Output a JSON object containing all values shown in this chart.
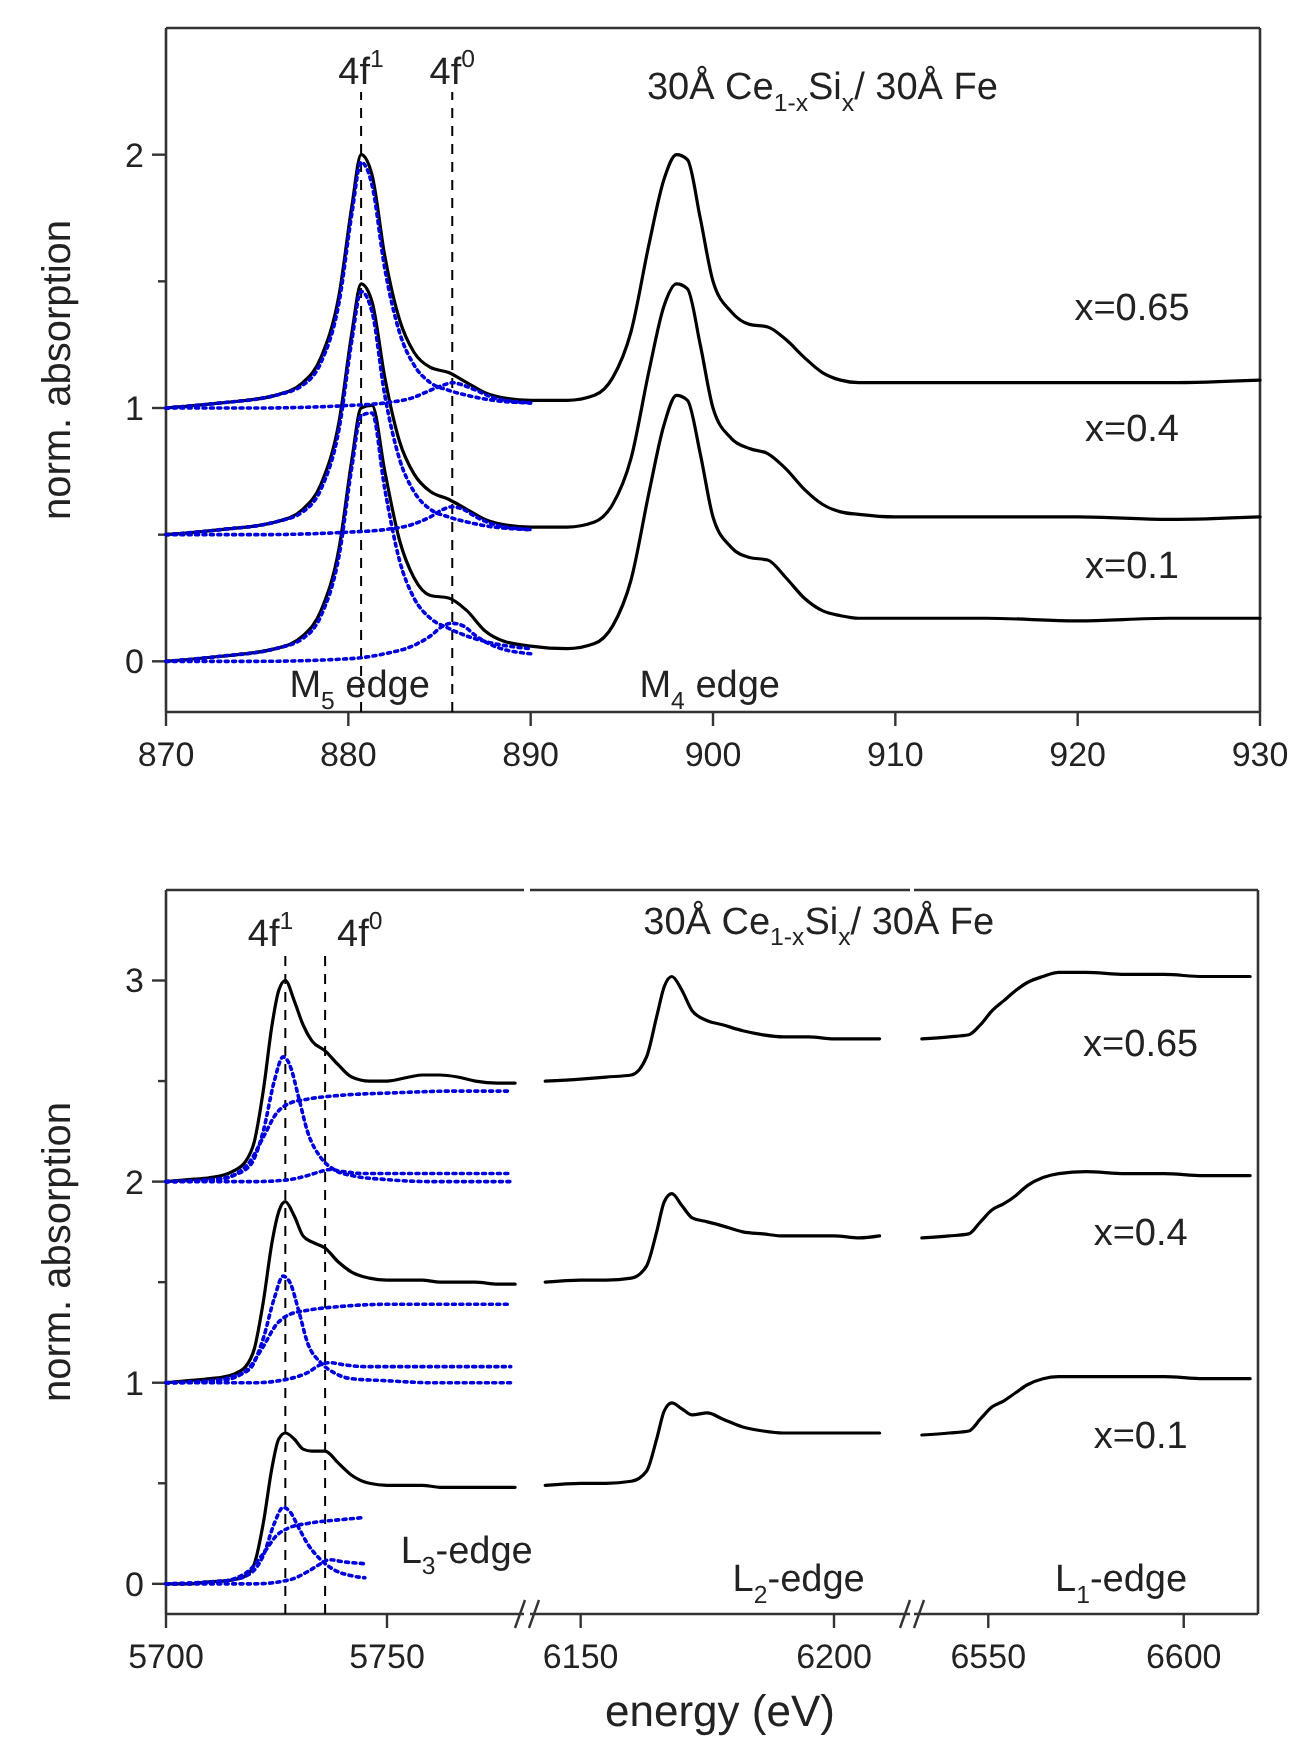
{
  "chart_data": [
    {
      "type": "line",
      "ylabel": "norm. absorption",
      "xlim": [
        870,
        930
      ],
      "xticks": [
        870,
        880,
        890,
        900,
        910,
        920,
        930
      ],
      "ylim": [
        -0.2,
        2.5
      ],
      "yticks": [
        0,
        {
          "value": 0.5,
          "label": null
        },
        1,
        {
          "value": 1.5,
          "label": null
        },
        2
      ],
      "series": [
        {
          "color": "#000000",
          "line_style": "solid",
          "x": [
            870,
            873,
            876,
            877.5,
            878.5,
            879.5,
            880.2,
            880.7,
            881.3,
            882,
            882.8,
            883.6,
            884.5,
            885.5,
            886.5,
            887.5,
            888.5,
            890,
            892,
            893.5,
            894.5,
            895.5,
            896.5,
            897.3,
            898,
            898.6,
            899.3,
            900,
            901,
            902,
            903,
            904,
            905,
            906,
            907,
            908,
            910,
            915,
            920,
            925,
            930
          ],
          "values": [
            1.0,
            1.02,
            1.05,
            1.1,
            1.2,
            1.45,
            1.8,
            2.0,
            1.92,
            1.6,
            1.35,
            1.22,
            1.16,
            1.14,
            1.1,
            1.06,
            1.04,
            1.03,
            1.03,
            1.05,
            1.12,
            1.3,
            1.65,
            1.9,
            2.0,
            1.98,
            1.75,
            1.5,
            1.38,
            1.33,
            1.32,
            1.27,
            1.2,
            1.14,
            1.11,
            1.1,
            1.1,
            1.1,
            1.1,
            1.1,
            1.11
          ]
        },
        {
          "color": "#000000",
          "line_style": "solid",
          "x": [
            870,
            873,
            876,
            877.5,
            878.5,
            879.5,
            880.2,
            880.7,
            881.3,
            882,
            882.8,
            883.6,
            884.5,
            885.5,
            886.5,
            887.5,
            888.5,
            890,
            892,
            893.5,
            894.5,
            895.5,
            896.5,
            897.3,
            898,
            898.6,
            899.3,
            900,
            901,
            902,
            903,
            904,
            905,
            906,
            907,
            908,
            910,
            915,
            920,
            925,
            930
          ],
          "values": [
            0.5,
            0.52,
            0.55,
            0.6,
            0.7,
            0.95,
            1.3,
            1.49,
            1.42,
            1.12,
            0.87,
            0.74,
            0.67,
            0.64,
            0.6,
            0.56,
            0.54,
            0.53,
            0.53,
            0.55,
            0.62,
            0.8,
            1.15,
            1.4,
            1.49,
            1.47,
            1.25,
            1.0,
            0.88,
            0.84,
            0.82,
            0.76,
            0.68,
            0.62,
            0.59,
            0.58,
            0.57,
            0.57,
            0.57,
            0.56,
            0.57
          ]
        },
        {
          "color": "#000000",
          "line_style": "solid",
          "x": [
            870,
            873,
            876,
            877.5,
            878.5,
            879.5,
            880.2,
            880.7,
            881.3,
            882,
            882.8,
            883.6,
            884.5,
            885.5,
            886.5,
            887.5,
            888.5,
            890,
            892,
            893.5,
            894.5,
            895.5,
            896.5,
            897.3,
            898,
            898.6,
            899.3,
            900,
            901,
            902,
            903,
            904,
            905,
            906,
            907,
            908,
            910,
            915,
            920,
            925,
            930
          ],
          "values": [
            0.0,
            0.02,
            0.05,
            0.1,
            0.2,
            0.45,
            0.8,
            1.0,
            1.01,
            0.75,
            0.48,
            0.33,
            0.26,
            0.25,
            0.2,
            0.12,
            0.08,
            0.06,
            0.05,
            0.07,
            0.14,
            0.32,
            0.67,
            0.93,
            1.05,
            1.03,
            0.82,
            0.57,
            0.45,
            0.41,
            0.4,
            0.33,
            0.25,
            0.2,
            0.18,
            0.17,
            0.17,
            0.17,
            0.16,
            0.17,
            0.17
          ]
        },
        {
          "color": "#0000dd",
          "line_style": "dotted",
          "x": [
            870,
            873,
            876,
            877.5,
            878.5,
            879.5,
            880.2,
            880.7,
            881.3,
            882,
            882.8,
            883.6,
            884.5,
            885.5,
            886.5,
            888,
            890
          ],
          "values": [
            1.0,
            1.02,
            1.05,
            1.09,
            1.18,
            1.42,
            1.77,
            1.97,
            1.88,
            1.55,
            1.3,
            1.17,
            1.1,
            1.07,
            1.05,
            1.03,
            1.02
          ]
        },
        {
          "color": "#0000dd",
          "line_style": "dotted",
          "x": [
            870,
            875,
            880,
            882,
            883.5,
            884.5,
            885.2,
            885.7,
            886.3,
            887,
            888,
            890
          ],
          "values": [
            1.0,
            1.0,
            1.01,
            1.02,
            1.04,
            1.07,
            1.09,
            1.1,
            1.09,
            1.07,
            1.04,
            1.02
          ]
        },
        {
          "color": "#0000dd",
          "line_style": "dotted",
          "x": [
            870,
            873,
            876,
            877.5,
            878.5,
            879.5,
            880.2,
            880.7,
            881.3,
            882,
            882.8,
            883.6,
            884.5,
            885.5,
            886.5,
            888,
            890
          ],
          "values": [
            0.5,
            0.52,
            0.55,
            0.59,
            0.68,
            0.92,
            1.27,
            1.46,
            1.38,
            1.05,
            0.8,
            0.67,
            0.6,
            0.57,
            0.55,
            0.53,
            0.52
          ]
        },
        {
          "color": "#0000dd",
          "line_style": "dotted",
          "x": [
            870,
            875,
            880,
            882,
            883.5,
            884.5,
            885.2,
            885.7,
            886.3,
            887,
            888,
            890
          ],
          "values": [
            0.5,
            0.5,
            0.51,
            0.52,
            0.54,
            0.57,
            0.6,
            0.61,
            0.6,
            0.57,
            0.54,
            0.52
          ]
        },
        {
          "color": "#0000dd",
          "line_style": "dotted",
          "x": [
            870,
            873,
            876,
            877.5,
            878.5,
            879.5,
            880.2,
            880.7,
            881.3,
            882,
            882.8,
            883.6,
            884.5,
            885.5,
            886.5,
            888,
            890
          ],
          "values": [
            0,
            0.02,
            0.05,
            0.09,
            0.18,
            0.42,
            0.77,
            0.97,
            0.98,
            0.68,
            0.4,
            0.25,
            0.17,
            0.13,
            0.1,
            0.07,
            0.05
          ]
        },
        {
          "color": "#0000dd",
          "line_style": "dotted",
          "x": [
            870,
            875,
            880,
            882,
            883.5,
            884.5,
            885.2,
            885.7,
            886.3,
            887,
            888,
            890
          ],
          "values": [
            0,
            0,
            0.01,
            0.03,
            0.06,
            0.1,
            0.14,
            0.15,
            0.14,
            0.1,
            0.06,
            0.03
          ]
        }
      ],
      "ref_lines": [
        {
          "axis": "x",
          "value": 880.7,
          "label": "4f$^{1}$",
          "line_style": "dashed",
          "color": "#000000"
        },
        {
          "axis": "x",
          "value": 885.7,
          "label": "4f$^{0}$",
          "line_style": "dashed",
          "color": "#000000"
        }
      ],
      "annotations": [
        "30Å Ce$_{1-x}$Si$_{x}$/ 30Å Fe",
        "x=0.65",
        "x=0.4",
        "x=0.1",
        "M$_{5}$ edge",
        "M$_{4}$ edge"
      ]
    },
    {
      "type": "line",
      "ylabel": "norm. absorption",
      "xlim": [
        5700,
        5781
      ],
      "xticks": [
        5700,
        5750
      ],
      "ylim": [
        -0.15,
        3.45
      ],
      "yticks": [
        0,
        {
          "value": 0.5,
          "label": null
        },
        1,
        {
          "value": 1.5,
          "label": null
        },
        2,
        {
          "value": 2.5,
          "label": null
        },
        3
      ],
      "series": [
        {
          "color": "#000000",
          "line_style": "solid",
          "x": [
            5700,
            5705,
            5710,
            5715,
            5718,
            5720,
            5722,
            5724,
            5725.5,
            5727,
            5729,
            5731,
            5733,
            5736,
            5739,
            5742,
            5746,
            5750,
            5755,
            5758,
            5762,
            5766,
            5770,
            5775,
            5779
          ],
          "values": [
            2.0,
            2.01,
            2.02,
            2.05,
            2.1,
            2.2,
            2.45,
            2.78,
            2.95,
            3.0,
            2.9,
            2.78,
            2.7,
            2.65,
            2.58,
            2.52,
            2.5,
            2.5,
            2.52,
            2.53,
            2.53,
            2.52,
            2.5,
            2.49,
            2.49
          ]
        },
        {
          "color": "#000000",
          "line_style": "solid",
          "x": [
            5700,
            5705,
            5710,
            5715,
            5718,
            5720,
            5722,
            5724,
            5725.5,
            5727,
            5729,
            5731,
            5733,
            5736,
            5739,
            5742,
            5746,
            5750,
            5755,
            5758,
            5762,
            5766,
            5770,
            5775,
            5779
          ],
          "values": [
            1.0,
            1.01,
            1.02,
            1.04,
            1.08,
            1.17,
            1.4,
            1.7,
            1.85,
            1.9,
            1.83,
            1.73,
            1.7,
            1.67,
            1.6,
            1.55,
            1.52,
            1.51,
            1.51,
            1.51,
            1.5,
            1.5,
            1.5,
            1.49,
            1.49
          ]
        },
        {
          "color": "#000000",
          "line_style": "solid",
          "x": [
            5700,
            5705,
            5710,
            5715,
            5718,
            5720,
            5722,
            5724,
            5725.5,
            5727,
            5729,
            5731,
            5733,
            5736,
            5739,
            5742,
            5746,
            5750,
            5755,
            5758,
            5762,
            5766,
            5770,
            5775,
            5779
          ],
          "values": [
            0,
            0,
            0.01,
            0.02,
            0.04,
            0.1,
            0.3,
            0.58,
            0.72,
            0.75,
            0.72,
            0.67,
            0.66,
            0.66,
            0.6,
            0.54,
            0.5,
            0.49,
            0.49,
            0.49,
            0.48,
            0.48,
            0.48,
            0.48,
            0.48
          ]
        },
        {
          "color": "#0000dd",
          "line_style": "dotted",
          "x": [
            5700,
            5710,
            5715,
            5719,
            5722,
            5724.5,
            5726.5,
            5728,
            5730,
            5732,
            5735,
            5738,
            5742,
            5750,
            5760,
            5778
          ],
          "values": [
            2.0,
            2.01,
            2.03,
            2.08,
            2.25,
            2.5,
            2.62,
            2.58,
            2.42,
            2.25,
            2.12,
            2.06,
            2.03,
            2.01,
            2.0,
            2.0
          ]
        },
        {
          "color": "#0000dd",
          "line_style": "dotted",
          "x": [
            5700,
            5712,
            5716,
            5719,
            5722,
            5725,
            5728,
            5732,
            5740,
            5750,
            5765,
            5778
          ],
          "values": [
            2.0,
            2.01,
            2.04,
            2.1,
            2.22,
            2.34,
            2.39,
            2.41,
            2.43,
            2.44,
            2.45,
            2.45
          ]
        },
        {
          "color": "#0000dd",
          "line_style": "dotted",
          "x": [
            5700,
            5720,
            5728,
            5732,
            5735,
            5737,
            5740,
            5745,
            5755,
            5778
          ],
          "values": [
            2.0,
            2.0,
            2.01,
            2.03,
            2.05,
            2.06,
            2.05,
            2.04,
            2.04,
            2.04
          ]
        },
        {
          "color": "#0000dd",
          "line_style": "dotted",
          "x": [
            5700,
            5710,
            5715,
            5719,
            5722,
            5724.5,
            5726.5,
            5728,
            5730,
            5732,
            5735,
            5738,
            5742,
            5750,
            5760,
            5778
          ],
          "values": [
            1.0,
            1.01,
            1.03,
            1.07,
            1.22,
            1.42,
            1.53,
            1.5,
            1.36,
            1.2,
            1.1,
            1.05,
            1.02,
            1.01,
            1.0,
            1.0
          ]
        },
        {
          "color": "#0000dd",
          "line_style": "dotted",
          "x": [
            5700,
            5712,
            5716,
            5719,
            5722,
            5725,
            5728,
            5732,
            5740,
            5750,
            5765,
            5778
          ],
          "values": [
            1.0,
            1.01,
            1.03,
            1.08,
            1.18,
            1.29,
            1.34,
            1.36,
            1.38,
            1.39,
            1.39,
            1.39
          ]
        },
        {
          "color": "#0000dd",
          "line_style": "dotted",
          "x": [
            5700,
            5720,
            5728,
            5732,
            5735,
            5737,
            5740,
            5745,
            5755,
            5778
          ],
          "values": [
            1.0,
            1.0,
            1.02,
            1.05,
            1.09,
            1.1,
            1.09,
            1.08,
            1.08,
            1.08
          ]
        },
        {
          "color": "#0000dd",
          "line_style": "dotted",
          "x": [
            5700,
            5710,
            5715,
            5719,
            5722,
            5724.5,
            5726.5,
            5728,
            5730,
            5732,
            5735,
            5738,
            5742,
            5745
          ],
          "values": [
            0,
            0.01,
            0.02,
            0.05,
            0.14,
            0.3,
            0.38,
            0.36,
            0.28,
            0.2,
            0.12,
            0.07,
            0.04,
            0.03
          ]
        },
        {
          "color": "#0000dd",
          "line_style": "dotted",
          "x": [
            5700,
            5712,
            5716,
            5719,
            5722,
            5725,
            5728,
            5732,
            5740,
            5745
          ],
          "values": [
            0,
            0.01,
            0.03,
            0.07,
            0.15,
            0.24,
            0.28,
            0.3,
            0.32,
            0.33
          ]
        },
        {
          "color": "#0000dd",
          "line_style": "dotted",
          "x": [
            5700,
            5720,
            5728,
            5732,
            5735,
            5737,
            5740,
            5745
          ],
          "values": [
            0,
            0,
            0.02,
            0.06,
            0.1,
            0.12,
            0.11,
            0.1
          ]
        }
      ],
      "ref_lines": [
        {
          "axis": "x",
          "value": 5727,
          "label": "4f$^{1}$",
          "line_style": "dashed",
          "color": "#000000"
        },
        {
          "axis": "x",
          "value": 5736,
          "label": "4f$^{0}$",
          "line_style": "dashed",
          "color": "#000000"
        }
      ],
      "annotations": [
        "L$_{3}$-edge"
      ]
    },
    {
      "type": "line",
      "xlabel": "energy (eV)",
      "tick_labels": "x",
      "xlim": [
        6140,
        6215
      ],
      "xticks": [
        6150,
        6200
      ],
      "ylim": [
        -0.15,
        3.45
      ],
      "series": [
        {
          "color": "#000000",
          "line_style": "solid",
          "x": [
            6143,
            6150,
            6155,
            6160,
            6163,
            6165,
            6166.5,
            6168,
            6170,
            6172,
            6175,
            6178,
            6182,
            6186,
            6190,
            6195,
            6200,
            6205,
            6209
          ],
          "values": [
            2.5,
            2.51,
            2.52,
            2.53,
            2.62,
            2.82,
            2.97,
            3.02,
            2.95,
            2.85,
            2.8,
            2.78,
            2.75,
            2.73,
            2.72,
            2.72,
            2.71,
            2.71,
            2.71
          ]
        },
        {
          "color": "#000000",
          "line_style": "solid",
          "x": [
            6143,
            6150,
            6155,
            6160,
            6163,
            6165,
            6166.5,
            6168,
            6170,
            6172,
            6175,
            6178,
            6182,
            6186,
            6190,
            6195,
            6200,
            6205,
            6209
          ],
          "values": [
            1.5,
            1.51,
            1.51,
            1.52,
            1.58,
            1.75,
            1.9,
            1.94,
            1.88,
            1.82,
            1.8,
            1.78,
            1.75,
            1.74,
            1.73,
            1.73,
            1.73,
            1.72,
            1.73
          ]
        },
        {
          "color": "#000000",
          "line_style": "solid",
          "x": [
            6143,
            6150,
            6155,
            6160,
            6163,
            6165,
            6166.5,
            6168,
            6170,
            6172,
            6175,
            6178,
            6182,
            6186,
            6190,
            6195,
            6200,
            6205,
            6209
          ],
          "values": [
            0.49,
            0.5,
            0.5,
            0.51,
            0.56,
            0.72,
            0.86,
            0.9,
            0.87,
            0.84,
            0.85,
            0.82,
            0.78,
            0.76,
            0.75,
            0.75,
            0.75,
            0.75,
            0.75
          ]
        }
      ],
      "annotations": [
        "30Å Ce$_{1-x}$Si$_{x}$/ 30Å Fe",
        "L$_{2}$-edge"
      ]
    },
    {
      "type": "line",
      "tick_labels": "x",
      "xlim": [
        6531,
        6619
      ],
      "xticks": [
        6550,
        6600
      ],
      "ylim": [
        -0.15,
        3.45
      ],
      "series": [
        {
          "color": "#000000",
          "line_style": "solid",
          "x": [
            6533,
            6540,
            6545,
            6548,
            6551,
            6554,
            6557,
            6560,
            6564,
            6568,
            6575,
            6585,
            6595,
            6605,
            6617
          ],
          "values": [
            2.71,
            2.72,
            2.73,
            2.78,
            2.85,
            2.9,
            2.95,
            2.99,
            3.02,
            3.04,
            3.04,
            3.03,
            3.03,
            3.02,
            3.02
          ]
        },
        {
          "color": "#000000",
          "line_style": "solid",
          "x": [
            6533,
            6540,
            6545,
            6548,
            6551,
            6554,
            6557,
            6560,
            6564,
            6568,
            6575,
            6585,
            6595,
            6605,
            6617
          ],
          "values": [
            1.72,
            1.73,
            1.74,
            1.8,
            1.86,
            1.89,
            1.93,
            1.98,
            2.02,
            2.04,
            2.05,
            2.04,
            2.04,
            2.03,
            2.03
          ]
        },
        {
          "color": "#000000",
          "line_style": "solid",
          "x": [
            6533,
            6540,
            6545,
            6548,
            6551,
            6554,
            6557,
            6560,
            6564,
            6568,
            6575,
            6585,
            6595,
            6605,
            6617
          ],
          "values": [
            0.74,
            0.75,
            0.76,
            0.82,
            0.88,
            0.91,
            0.95,
            0.99,
            1.02,
            1.03,
            1.03,
            1.03,
            1.03,
            1.02,
            1.02
          ]
        }
      ],
      "annotations": [
        "x=0.65",
        "x=0.4",
        "x=0.1",
        "L$_{1}$-edge"
      ]
    }
  ]
}
